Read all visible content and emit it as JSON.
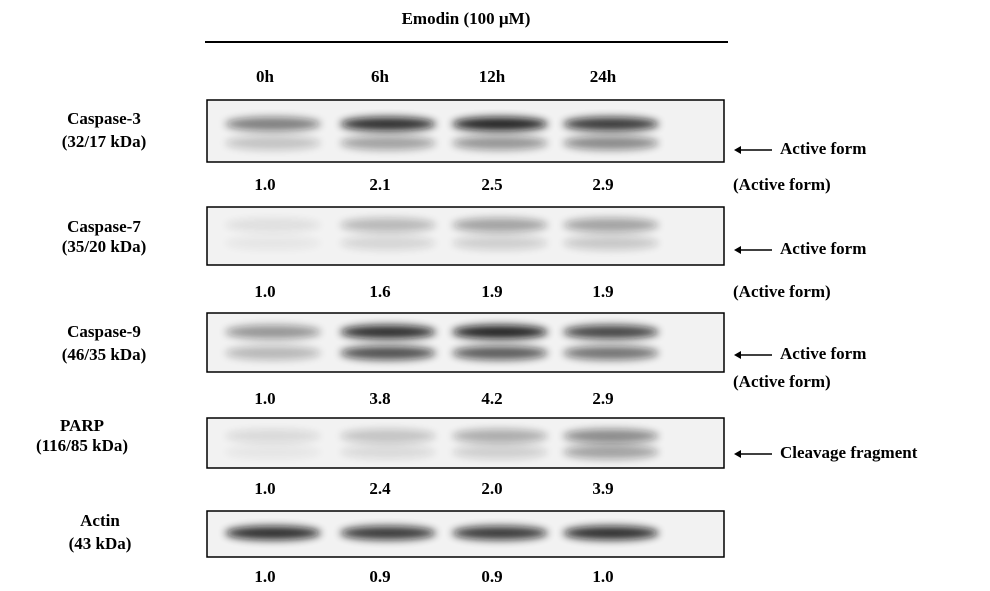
{
  "header": {
    "title": "Emodin (100 µM)",
    "lanes": [
      "0h",
      "6h",
      "12h",
      "24h"
    ]
  },
  "blots": [
    {
      "name": "Caspase-3",
      "size": "(32/17 kDa)",
      "annotation": "Active form",
      "quant": [
        "1.0",
        "2.1",
        "2.5",
        "2.9"
      ],
      "quant_label": "(Active form)"
    },
    {
      "name": "Caspase-7",
      "size": "(35/20 kDa)",
      "annotation": "Active form",
      "quant": [
        "1.0",
        "1.6",
        "1.9",
        "1.9"
      ],
      "quant_label": "(Active form)"
    },
    {
      "name": "Caspase-9",
      "size": "(46/35 kDa)",
      "annotation": "Active form",
      "quant": [
        "1.0",
        "3.8",
        "4.2",
        "2.9"
      ],
      "quant_label": "(Active form)"
    },
    {
      "name": "PARP",
      "size": "(116/85 kDa)",
      "annotation": "Cleavage fragment",
      "quant": [
        "1.0",
        "2.4",
        "2.0",
        "3.9"
      ]
    },
    {
      "name": "Actin",
      "size": "(43 kDa)",
      "quant": [
        "1.0",
        "0.9",
        "0.9",
        "1.0"
      ]
    }
  ]
}
